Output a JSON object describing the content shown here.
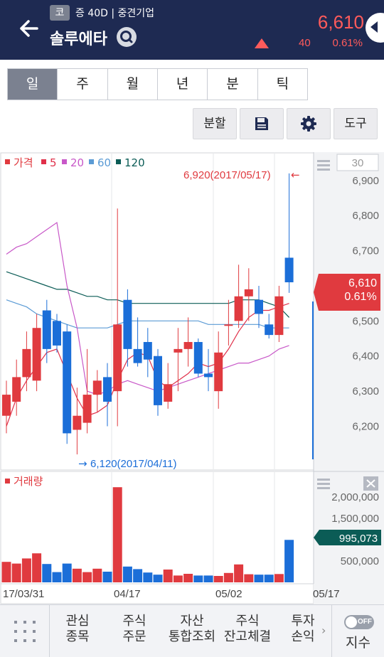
{
  "header": {
    "market_badge": "코",
    "meta": "증 40D | 중견기업",
    "stock_name": "솔루에타",
    "price": "6,610",
    "change": "40",
    "change_pct": "0.61%"
  },
  "tabs": [
    {
      "label": "일",
      "active": true
    },
    {
      "label": "주",
      "active": false
    },
    {
      "label": "월",
      "active": false
    },
    {
      "label": "년",
      "active": false
    },
    {
      "label": "분",
      "active": false
    },
    {
      "label": "틱",
      "active": false
    }
  ],
  "toolbar": {
    "split_label": "분할",
    "tools_label": "도구"
  },
  "legend": {
    "price_label": "가격",
    "ma": [
      "5",
      "20",
      "60",
      "120"
    ],
    "volume_label": "거래량",
    "period_box": "30"
  },
  "annotations": {
    "high": "6,920(2017/05/17)",
    "low": "6,120(2017/04/11)",
    "price_tag_value": "6,610",
    "price_tag_pct": "0.61%",
    "volume_tag": "995,073"
  },
  "bottom_nav": {
    "items": [
      {
        "line1": "관심",
        "line2": "종목"
      },
      {
        "line1": "주식",
        "line2": "주문"
      },
      {
        "line1": "자산",
        "line2": "통합조회"
      },
      {
        "line1": "주식",
        "line2": "잔고체결"
      },
      {
        "line1": "투자",
        "line2": "손익"
      }
    ],
    "toggle_label": "OFF",
    "index_label": "지수"
  },
  "colors": {
    "up": "#e03a3f",
    "down": "#1b6ed8",
    "ma5": "#e0304a",
    "ma20": "#c858c8",
    "ma60": "#5b9bd5",
    "ma120": "#0b5c56",
    "header_bg": "#1e2a52"
  },
  "chart_data": {
    "type": "candlestick",
    "x_ticks": [
      "17/03/31",
      "04/17",
      "05/02",
      "05/17"
    ],
    "y_ticks": [
      "6,900",
      "6,800",
      "6,700",
      "6,600",
      "6,500",
      "6,400",
      "6,300",
      "6,200"
    ],
    "ylim": [
      6110,
      6940
    ],
    "candles": [
      {
        "o": 6230,
        "c": 6290,
        "h": 6330,
        "l": 6180
      },
      {
        "o": 6270,
        "c": 6340,
        "h": 6390,
        "l": 6230
      },
      {
        "o": 6340,
        "c": 6420,
        "h": 6470,
        "l": 6300
      },
      {
        "o": 6330,
        "c": 6480,
        "h": 6520,
        "l": 6300
      },
      {
        "o": 6530,
        "c": 6420,
        "h": 6560,
        "l": 6380
      },
      {
        "o": 6500,
        "c": 6430,
        "h": 6520,
        "l": 6410
      },
      {
        "o": 6470,
        "c": 6180,
        "h": 6490,
        "l": 6150
      },
      {
        "o": 6190,
        "c": 6230,
        "h": 6310,
        "l": 6120
      },
      {
        "o": 6210,
        "c": 6290,
        "h": 6420,
        "l": 6180
      },
      {
        "o": 6290,
        "c": 6330,
        "h": 6360,
        "l": 6240
      },
      {
        "o": 6340,
        "c": 6270,
        "h": 6380,
        "l": 6200
      },
      {
        "o": 6300,
        "c": 6490,
        "h": 6820,
        "l": 6200
      },
      {
        "o": 6560,
        "c": 6420,
        "h": 6590,
        "l": 6370
      },
      {
        "o": 6420,
        "c": 6380,
        "h": 6510,
        "l": 6370
      },
      {
        "o": 6440,
        "c": 6390,
        "h": 6480,
        "l": 6340
      },
      {
        "o": 6400,
        "c": 6260,
        "h": 6420,
        "l": 6230
      },
      {
        "o": 6270,
        "c": 6320,
        "h": 6380,
        "l": 6250
      },
      {
        "o": 6410,
        "c": 6420,
        "h": 6480,
        "l": 6300
      },
      {
        "o": 6420,
        "c": 6440,
        "h": 6510,
        "l": 6370
      },
      {
        "o": 6440,
        "c": 6350,
        "h": 6450,
        "l": 6340
      },
      {
        "o": 6350,
        "c": 6340,
        "h": 6420,
        "l": 6300
      },
      {
        "o": 6300,
        "c": 6410,
        "h": 6470,
        "l": 6250
      },
      {
        "o": 6490,
        "c": 6490,
        "h": 6560,
        "l": 6430
      },
      {
        "o": 6500,
        "c": 6570,
        "h": 6660,
        "l": 6480
      },
      {
        "o": 6570,
        "c": 6590,
        "h": 6650,
        "l": 6500
      },
      {
        "o": 6560,
        "c": 6520,
        "h": 6600,
        "l": 6480
      },
      {
        "o": 6490,
        "c": 6460,
        "h": 6520,
        "l": 6450
      },
      {
        "o": 6460,
        "c": 6570,
        "h": 6600,
        "l": 6440
      },
      {
        "o": 6680,
        "c": 6610,
        "h": 6920,
        "l": 6580
      }
    ],
    "ma5": [
      6200,
      6280,
      6330,
      6370,
      6410,
      6420,
      6350,
      6280,
      6230,
      6240,
      6260,
      6330,
      6390,
      6410,
      6400,
      6330,
      6310,
      6330,
      6350,
      6380,
      6370,
      6380,
      6420,
      6470,
      6510,
      6530,
      6530,
      6540,
      6550
    ],
    "ma20": [
      6690,
      6710,
      6720,
      6740,
      6760,
      6780,
      6600,
      6480,
      6300,
      6290,
      6300,
      6320,
      6330,
      6320,
      6310,
      6300,
      6310,
      6320,
      6330,
      6340,
      6350,
      6360,
      6370,
      6380,
      6380,
      6390,
      6400,
      6420,
      6430
    ],
    "ma60": [
      6560,
      6550,
      6540,
      6520,
      6510,
      6500,
      6490,
      6480,
      6480,
      6480,
      6480,
      6490,
      6500,
      6500,
      6500,
      6500,
      6500,
      6500,
      6500,
      6500,
      6490,
      6490,
      6490,
      6490,
      6490,
      6490,
      6480,
      6480,
      6480
    ],
    "ma120": [
      6640,
      6630,
      6620,
      6610,
      6600,
      6590,
      6590,
      6580,
      6570,
      6570,
      6560,
      6560,
      6550,
      6550,
      6550,
      6550,
      6550,
      6550,
      6550,
      6550,
      6550,
      6550,
      6550,
      6560,
      6560,
      6560,
      6550,
      6540,
      6510
    ],
    "volume_ticks": [
      "2,000,000",
      "1,500,000",
      "500,000"
    ],
    "volume_ylim": [
      0,
      2250000
    ],
    "volume": [
      480000,
      440000,
      560000,
      680000,
      430000,
      240000,
      440000,
      320000,
      240000,
      320000,
      250000,
      2230000,
      370000,
      310000,
      230000,
      180000,
      300000,
      160000,
      200000,
      160000,
      160000,
      150000,
      220000,
      420000,
      190000,
      180000,
      180000,
      195000,
      995073
    ]
  }
}
